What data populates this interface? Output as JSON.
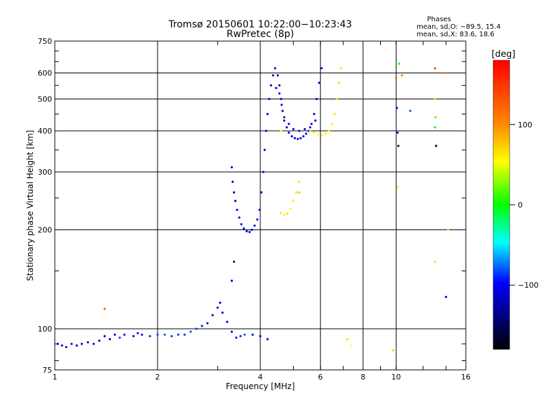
{
  "chart_data": {
    "type": "scatter",
    "title": "Tromsø 20150601 10:22:00−10:23:43",
    "subtitle": "RwPretec (8p)",
    "xlabel": "Frequency [MHz]",
    "ylabel": "Stationary phase Virtual Height [km]",
    "x_scale": "log",
    "y_scale": "log",
    "xlim": [
      1,
      16
    ],
    "ylim": [
      75,
      750
    ],
    "x_ticks": [
      1,
      2,
      4,
      6,
      8,
      10,
      16
    ],
    "x_tick_labels": [
      "1",
      "2",
      "4",
      "6",
      "8",
      "10",
      "16"
    ],
    "y_ticks": [
      75,
      100,
      200,
      300,
      400,
      500,
      600,
      750
    ],
    "y_tick_labels": [
      "75",
      "100",
      "200",
      "300",
      "400",
      "500",
      "600",
      "750"
    ],
    "x_gridlines": [
      2,
      4,
      6,
      8,
      10
    ],
    "y_gridlines": [
      100,
      200,
      300,
      400,
      500,
      600
    ],
    "grid": true,
    "stats": {
      "heading": "Phases",
      "line_o": "mean, sd,O: −89.5, 15.4",
      "line_x": "mean, sd,X:  83.6, 18.6"
    },
    "colorbar": {
      "label": "[deg]",
      "range": [
        -180,
        180
      ],
      "ticks": [
        100,
        0,
        -100
      ],
      "tick_labels": [
        "100",
        "0",
        "−100"
      ],
      "colors": [
        "#ff0000",
        "#ffff00",
        "#00ff00",
        "#00ffff",
        "#0000ff",
        "#000000"
      ]
    },
    "series": [
      {
        "points": [
          [
            1.02,
            90,
            -105
          ],
          [
            1.05,
            89,
            -100
          ],
          [
            1.08,
            88,
            -110
          ],
          [
            1.12,
            90,
            -95
          ],
          [
            1.16,
            89,
            -115
          ],
          [
            1.2,
            90,
            -108
          ],
          [
            1.25,
            91,
            -100
          ],
          [
            1.3,
            90,
            -112
          ],
          [
            1.35,
            92,
            -120
          ],
          [
            1.4,
            95,
            -110
          ],
          [
            1.45,
            93,
            -100
          ],
          [
            1.5,
            96,
            -105
          ],
          [
            1.55,
            94,
            -90
          ],
          [
            1.6,
            96,
            -100
          ],
          [
            1.7,
            95,
            -110
          ],
          [
            1.75,
            97,
            -95
          ],
          [
            1.8,
            96,
            -100
          ],
          [
            1.9,
            95,
            -90
          ],
          [
            2.0,
            96,
            -85
          ],
          [
            2.1,
            96,
            -80
          ],
          [
            2.2,
            95,
            -85
          ],
          [
            2.3,
            96,
            -88
          ],
          [
            2.4,
            96,
            -90
          ],
          [
            2.5,
            98,
            -80
          ],
          [
            2.6,
            100,
            -85
          ],
          [
            2.7,
            102,
            -95
          ],
          [
            2.8,
            104,
            -100
          ],
          [
            2.9,
            110,
            -105
          ],
          [
            3.0,
            116,
            -110
          ],
          [
            3.05,
            120,
            -120
          ],
          [
            3.1,
            112,
            -115
          ],
          [
            3.2,
            105,
            -110
          ],
          [
            3.3,
            140,
            -130
          ],
          [
            3.35,
            160,
            -140
          ],
          [
            3.3,
            98,
            -120
          ],
          [
            3.4,
            94,
            -100
          ],
          [
            3.5,
            95,
            -90
          ],
          [
            3.6,
            96,
            -80
          ],
          [
            3.8,
            96,
            -110
          ],
          [
            4.0,
            95,
            -110
          ],
          [
            4.2,
            93,
            -105
          ],
          [
            1.4,
            115,
            150
          ],
          [
            3.3,
            310,
            -130
          ],
          [
            3.32,
            280,
            -120
          ],
          [
            3.35,
            260,
            -115
          ],
          [
            3.38,
            245,
            -110
          ],
          [
            3.42,
            230,
            -105
          ],
          [
            3.47,
            218,
            -110
          ],
          [
            3.52,
            208,
            -105
          ],
          [
            3.58,
            202,
            -100
          ],
          [
            3.65,
            198,
            -105
          ],
          [
            3.72,
            197,
            -110
          ],
          [
            3.78,
            200,
            -105
          ],
          [
            3.85,
            206,
            -100
          ],
          [
            3.92,
            215,
            -100
          ],
          [
            3.98,
            230,
            -105
          ],
          [
            4.03,
            260,
            -110
          ],
          [
            4.08,
            300,
            -110
          ],
          [
            4.12,
            350,
            -110
          ],
          [
            4.16,
            400,
            -105
          ],
          [
            4.2,
            450,
            -110
          ],
          [
            4.25,
            500,
            -110
          ],
          [
            4.3,
            550,
            -110
          ],
          [
            4.36,
            590,
            -110
          ],
          [
            4.42,
            620,
            -110
          ],
          [
            4.5,
            590,
            -110
          ],
          [
            4.55,
            550,
            -115
          ],
          [
            4.6,
            500,
            -110
          ],
          [
            4.65,
            460,
            -110
          ],
          [
            4.7,
            430,
            -105
          ],
          [
            4.78,
            410,
            -110
          ],
          [
            4.85,
            395,
            -110
          ],
          [
            4.95,
            385,
            -105
          ],
          [
            5.05,
            380,
            -110
          ],
          [
            5.15,
            378,
            -108
          ],
          [
            5.25,
            380,
            -110
          ],
          [
            5.35,
            385,
            -105
          ],
          [
            5.45,
            392,
            -110
          ],
          [
            5.55,
            400,
            -110
          ],
          [
            5.65,
            420,
            -110
          ],
          [
            5.75,
            450,
            -110
          ],
          [
            5.85,
            500,
            -110
          ],
          [
            5.95,
            560,
            -110
          ],
          [
            6.05,
            620,
            -110
          ],
          [
            4.45,
            540,
            -105
          ],
          [
            4.55,
            520,
            -100
          ],
          [
            4.62,
            480,
            -110
          ],
          [
            4.7,
            440,
            -115
          ],
          [
            4.85,
            420,
            -110
          ],
          [
            5.0,
            405,
            -110
          ],
          [
            5.2,
            400,
            -110
          ],
          [
            5.4,
            405,
            -110
          ],
          [
            5.6,
            410,
            -105
          ],
          [
            5.8,
            430,
            -110
          ],
          [
            4.6,
            225,
            110
          ],
          [
            4.7,
            222,
            105
          ],
          [
            4.8,
            224,
            110
          ],
          [
            4.9,
            232,
            100
          ],
          [
            5.0,
            245,
            105
          ],
          [
            5.1,
            260,
            110
          ],
          [
            5.2,
            280,
            110
          ],
          [
            5.6,
            400,
            90
          ],
          [
            5.75,
            395,
            95
          ],
          [
            5.9,
            390,
            100
          ],
          [
            6.05,
            388,
            110
          ],
          [
            6.2,
            392,
            105
          ],
          [
            6.35,
            400,
            100
          ],
          [
            6.5,
            420,
            105
          ],
          [
            6.6,
            450,
            110
          ],
          [
            6.7,
            500,
            110
          ],
          [
            6.8,
            560,
            110
          ],
          [
            6.9,
            620,
            110
          ],
          [
            4.6,
            400,
            100
          ],
          [
            5.2,
            260,
            120
          ],
          [
            7.2,
            93,
            110
          ],
          [
            7.4,
            89,
            100
          ],
          [
            9.8,
            86,
            115
          ],
          [
            10.0,
            580,
            150
          ],
          [
            10.05,
            470,
            -100
          ],
          [
            10.1,
            395,
            -110
          ],
          [
            10.15,
            360,
            -150
          ],
          [
            10.1,
            270,
            105
          ],
          [
            10.2,
            640,
            40
          ],
          [
            10.4,
            590,
            140
          ],
          [
            11.0,
            460,
            -80
          ],
          [
            13.0,
            620,
            160
          ],
          [
            13.0,
            500,
            110
          ],
          [
            13.05,
            440,
            60
          ],
          [
            13.0,
            410,
            40
          ],
          [
            13.1,
            360,
            -150
          ],
          [
            13.0,
            160,
            110
          ],
          [
            13.8,
            600,
            140
          ],
          [
            14.2,
            200,
            110
          ],
          [
            14.0,
            125,
            -100
          ]
        ]
      }
    ]
  }
}
